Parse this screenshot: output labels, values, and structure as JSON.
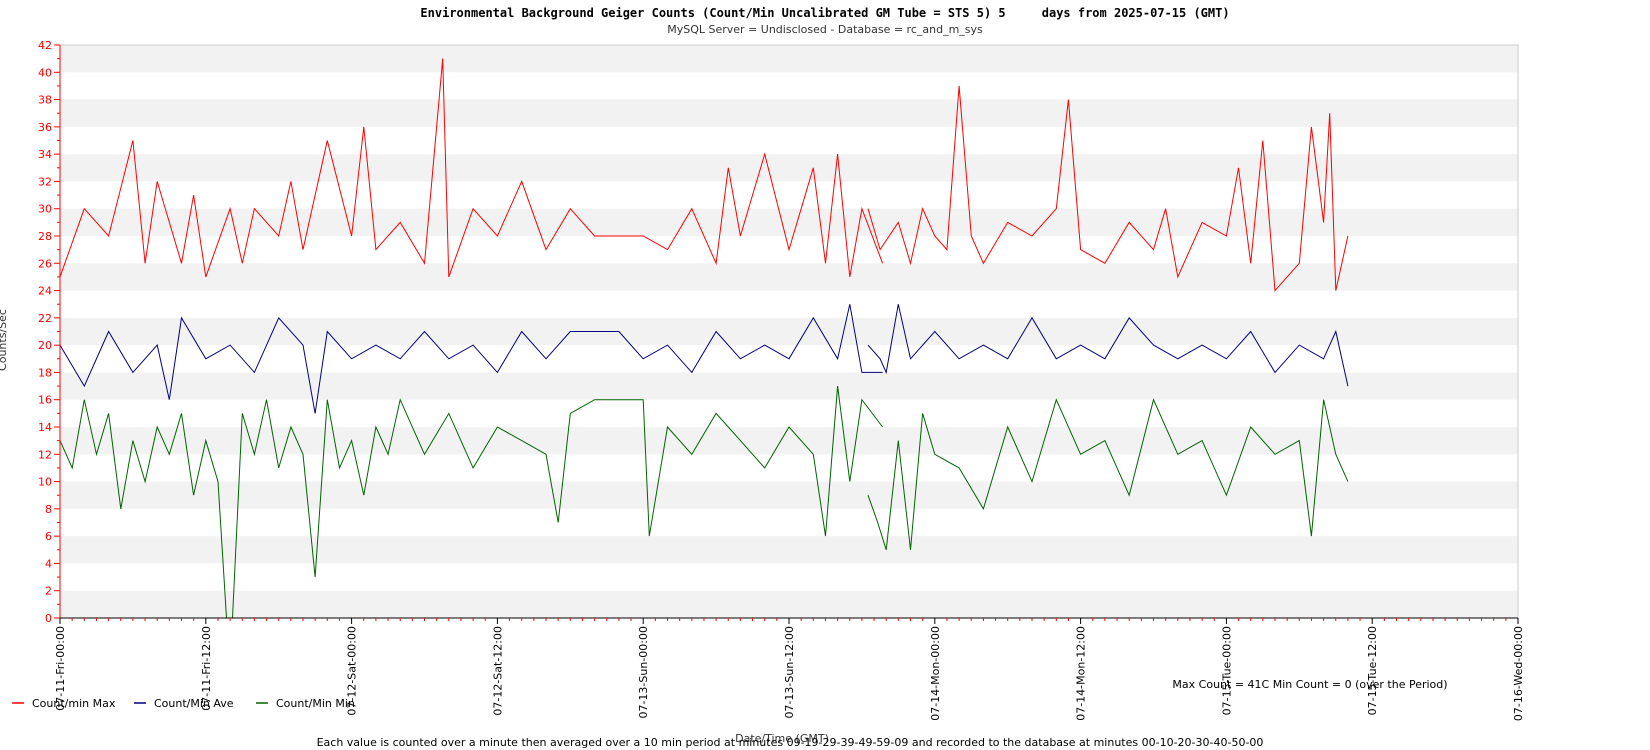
{
  "chart_data": {
    "type": "line",
    "title": "Environmental Background Geiger Counts (Count/Min Uncalibrated GM Tube = STS 5) 5     days from 2025-07-15 (GMT)",
    "subtitle": "MySQL Server = Undisclosed - Database = rc_and_m_sys",
    "xlabel": "Date/Time (GMT)",
    "ylabel": "Counts/Sec",
    "ylim": [
      0,
      42
    ],
    "yticks": [
      0,
      2,
      4,
      6,
      8,
      10,
      12,
      14,
      16,
      18,
      20,
      22,
      24,
      26,
      28,
      30,
      32,
      34,
      36,
      38,
      40,
      42
    ],
    "x_range_hours": [
      0,
      120
    ],
    "xtick_hours": [
      0,
      12,
      24,
      36,
      48,
      60,
      72,
      84,
      96,
      108,
      120
    ],
    "xtick_labels": [
      "07-11-Fri-00:00",
      "07-11-Fri-12:00",
      "07-12-Sat-00:00",
      "07-12-Sat-12:00",
      "07-13-Sun-00:00",
      "07-13-Sun-12:00",
      "07-14-Mon-00:00",
      "07-14-Mon-12:00",
      "07-15-Tue-00:00",
      "07-15-Tue-12:00",
      "07-16-Wed-00:00"
    ],
    "grid": "alternating horizontal bands",
    "legend_position": "bottom-left",
    "series": [
      {
        "name": "Count/min Max",
        "color": "#ff0000",
        "segments": [
          {
            "x": [
              0,
              2,
              4,
              6,
              7,
              8,
              10,
              11,
              12,
              14,
              15,
              16,
              18,
              19,
              20,
              22,
              24,
              25,
              26,
              28,
              30,
              31.5,
              32,
              34,
              36,
              38,
              40,
              42,
              44,
              46,
              48,
              50,
              52,
              54,
              55,
              56,
              58,
              60,
              62,
              63,
              64,
              65,
              66,
              67.7
            ],
            "y": [
              25,
              30,
              28,
              35,
              26,
              32,
              26,
              31,
              25,
              30,
              26,
              30,
              28,
              32,
              27,
              35,
              28,
              36,
              27,
              29,
              26,
              41,
              25,
              30,
              28,
              32,
              27,
              30,
              28,
              28,
              28,
              27,
              30,
              26,
              33,
              28,
              34,
              27,
              33,
              26,
              34,
              25,
              30,
              26
            ]
          },
          {
            "x": [
              66.5,
              67.5,
              69,
              70,
              71,
              72,
              73,
              74,
              75,
              76,
              78,
              80,
              82,
              83,
              84,
              86,
              88,
              90,
              91,
              92,
              94,
              96,
              97,
              98,
              99,
              100,
              102,
              103,
              104,
              104.5,
              105,
              106
            ],
            "y": [
              30,
              27,
              29,
              26,
              30,
              28,
              27,
              39,
              28,
              26,
              29,
              28,
              30,
              38,
              27,
              26,
              29,
              27,
              30,
              25,
              29,
              28,
              33,
              26,
              35,
              24,
              26,
              36,
              29,
              37,
              24,
              28
            ]
          }
        ]
      },
      {
        "name": "Count/Min Ave",
        "color": "#000080",
        "segments": [
          {
            "x": [
              0,
              2,
              4,
              6,
              8,
              9,
              10,
              12,
              14,
              16,
              18,
              20,
              21,
              22,
              24,
              26,
              28,
              30,
              32,
              34,
              36,
              38,
              40,
              42,
              44,
              46,
              48,
              50,
              52,
              54,
              56,
              58,
              60,
              62,
              64,
              65,
              66,
              67.7
            ],
            "y": [
              20,
              17,
              21,
              18,
              20,
              16,
              22,
              19,
              20,
              18,
              22,
              20,
              15,
              21,
              19,
              20,
              19,
              21,
              19,
              20,
              18,
              21,
              19,
              21,
              21,
              21,
              19,
              20,
              18,
              21,
              19,
              20,
              19,
              22,
              19,
              23,
              18,
              18
            ]
          },
          {
            "x": [
              66.5,
              67.5,
              68,
              69,
              70,
              72,
              74,
              76,
              78,
              80,
              82,
              84,
              86,
              88,
              90,
              92,
              94,
              96,
              98,
              100,
              102,
              104,
              104.5,
              105,
              106
            ],
            "y": [
              20,
              19,
              18,
              23,
              19,
              21,
              19,
              20,
              19,
              22,
              19,
              20,
              19,
              22,
              20,
              19,
              20,
              19,
              21,
              18,
              20,
              19,
              20,
              21,
              17
            ]
          }
        ]
      },
      {
        "name": "Count/Min Min",
        "color": "#006400",
        "segments": [
          {
            "x": [
              0,
              1,
              2,
              3,
              4,
              5,
              6,
              7,
              8,
              9,
              10,
              11,
              12,
              13,
              13.7,
              14.2,
              15,
              16,
              17,
              18,
              19,
              20,
              21,
              22,
              23,
              24,
              25,
              26,
              27,
              28,
              30,
              32,
              34,
              36,
              38,
              40,
              41,
              42,
              44,
              46,
              48,
              48.5,
              50,
              52,
              54,
              56,
              58,
              60,
              62,
              63,
              64,
              65,
              66,
              67.7
            ],
            "y": [
              13,
              11,
              16,
              12,
              15,
              8,
              13,
              10,
              14,
              12,
              15,
              9,
              13,
              10,
              0,
              0,
              15,
              12,
              16,
              11,
              14,
              12,
              3,
              16,
              11,
              13,
              9,
              14,
              12,
              16,
              12,
              15,
              11,
              14,
              13,
              12,
              7,
              15,
              16,
              16,
              16,
              6,
              14,
              12,
              15,
              13,
              11,
              14,
              12,
              6,
              17,
              10,
              16,
              14
            ]
          },
          {
            "x": [
              66.5,
              67.3,
              68,
              69,
              70,
              71,
              72,
              74,
              76,
              78,
              80,
              82,
              84,
              86,
              88,
              90,
              92,
              94,
              96,
              98,
              100,
              102,
              103,
              104,
              104.5,
              105,
              106
            ],
            "y": [
              9,
              7,
              5,
              13,
              5,
              15,
              12,
              11,
              8,
              14,
              10,
              16,
              12,
              13,
              9,
              16,
              12,
              13,
              9,
              14,
              12,
              13,
              6,
              16,
              14,
              12,
              10
            ]
          }
        ]
      }
    ]
  },
  "legend": {
    "items": [
      {
        "label": "Count/min Max",
        "color": "#ff0000"
      },
      {
        "label": "Count/Min Ave",
        "color": "#000080"
      },
      {
        "label": "Count/Min Min",
        "color": "#006400"
      }
    ]
  },
  "notes": {
    "summary": "Max Count = 41C Min Count = 0 (over the Period)",
    "footer": "Each value is counted over a minute then averaged over a 10 min period at minutes 09-19-29-39-49-59-09 and recorded to the database at minutes 00-10-20-30-40-50-00"
  },
  "colors": {
    "axis": "#ff0000",
    "band": "#f2f2f2"
  }
}
